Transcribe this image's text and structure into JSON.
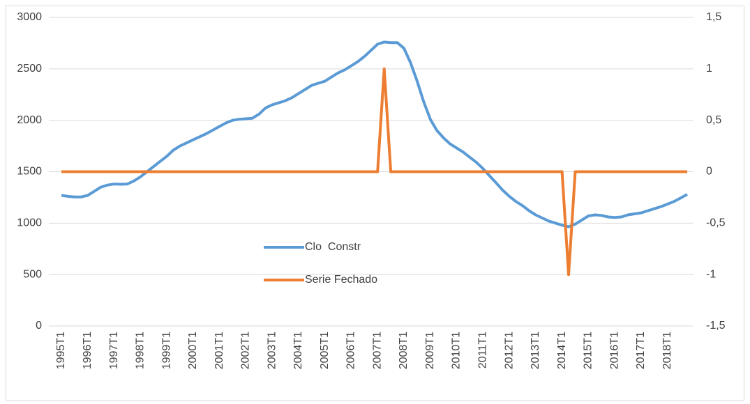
{
  "chart_data": {
    "type": "line",
    "categories": [
      "1995T1",
      null,
      null,
      null,
      "1996T1",
      null,
      null,
      null,
      "1997T1",
      null,
      null,
      null,
      "1998T1",
      null,
      null,
      null,
      "1999T1",
      null,
      null,
      null,
      "2000T1",
      null,
      null,
      null,
      "2001T1",
      null,
      null,
      null,
      "2002T1",
      null,
      null,
      null,
      "2003T1",
      null,
      null,
      null,
      "2004T1",
      null,
      null,
      null,
      "2005T1",
      null,
      null,
      null,
      "2006T1",
      null,
      null,
      null,
      "2007T1",
      null,
      null,
      null,
      "2008T1",
      null,
      null,
      null,
      "2009T1",
      null,
      null,
      null,
      "2010T1",
      null,
      null,
      null,
      "2011T1",
      null,
      null,
      null,
      "2012T1",
      null,
      null,
      null,
      "2013T1",
      null,
      null,
      null,
      "2014T1",
      null,
      null,
      null,
      "2015T1",
      null,
      null,
      null,
      "2016T1",
      null,
      null,
      null,
      "2017T1",
      null,
      null,
      null,
      "2018T1",
      null,
      null,
      null
    ],
    "series": [
      {
        "name": "Clo  Constr",
        "color": "#5b9bd5",
        "values": [
          1270,
          1260,
          1255,
          1255,
          1270,
          1310,
          1350,
          1370,
          1380,
          1378,
          1380,
          1410,
          1450,
          1500,
          1550,
          1600,
          1650,
          1710,
          1750,
          1780,
          1810,
          1840,
          1870,
          1905,
          1940,
          1975,
          2000,
          2010,
          2015,
          2020,
          2060,
          2120,
          2150,
          2170,
          2190,
          2220,
          2260,
          2300,
          2340,
          2360,
          2380,
          2420,
          2460,
          2490,
          2530,
          2570,
          2620,
          2680,
          2740,
          2760,
          2755,
          2755,
          2700,
          2560,
          2380,
          2180,
          2010,
          1900,
          1830,
          1770,
          1730,
          1690,
          1640,
          1590,
          1530,
          1460,
          1390,
          1320,
          1260,
          1210,
          1170,
          1120,
          1080,
          1050,
          1020,
          1000,
          980,
          965,
          990,
          1030,
          1070,
          1080,
          1075,
          1060,
          1055,
          1060,
          1080,
          1090,
          1100,
          1120,
          1140,
          1160,
          1185,
          1210,
          1245,
          1280
        ]
      },
      {
        "name": "Serie Fechado",
        "color": "#ed7d31",
        "axis": "y2",
        "values": [
          0,
          0,
          0,
          0,
          0,
          0,
          0,
          0,
          0,
          0,
          0,
          0,
          0,
          0,
          0,
          0,
          0,
          0,
          0,
          0,
          0,
          0,
          0,
          0,
          0,
          0,
          0,
          0,
          0,
          0,
          0,
          0,
          0,
          0,
          0,
          0,
          0,
          0,
          0,
          0,
          0,
          0,
          0,
          0,
          0,
          0,
          0,
          0,
          0,
          1,
          0,
          0,
          0,
          0,
          0,
          0,
          0,
          0,
          0,
          0,
          0,
          0,
          0,
          0,
          0,
          0,
          0,
          0,
          0,
          0,
          0,
          0,
          0,
          0,
          0,
          0,
          0,
          -1,
          0,
          0,
          0,
          0,
          0,
          0,
          0,
          0,
          0,
          0,
          0,
          0,
          0,
          0,
          0,
          0,
          0,
          0
        ]
      }
    ],
    "ylim": [
      0,
      3000
    ],
    "yticks": [
      0,
      500,
      1000,
      1500,
      2000,
      2500,
      3000
    ],
    "y2lim": [
      -1.5,
      1.5
    ],
    "y2ticks": [
      {
        "value": -1.5,
        "label": "-1,5"
      },
      -1,
      {
        "value": -0.5,
        "label": "-0,5"
      },
      0,
      {
        "value": 0.5,
        "label": "0,5"
      },
      1,
      {
        "value": 1.5,
        "label": "1,5"
      }
    ],
    "grid": true
  }
}
